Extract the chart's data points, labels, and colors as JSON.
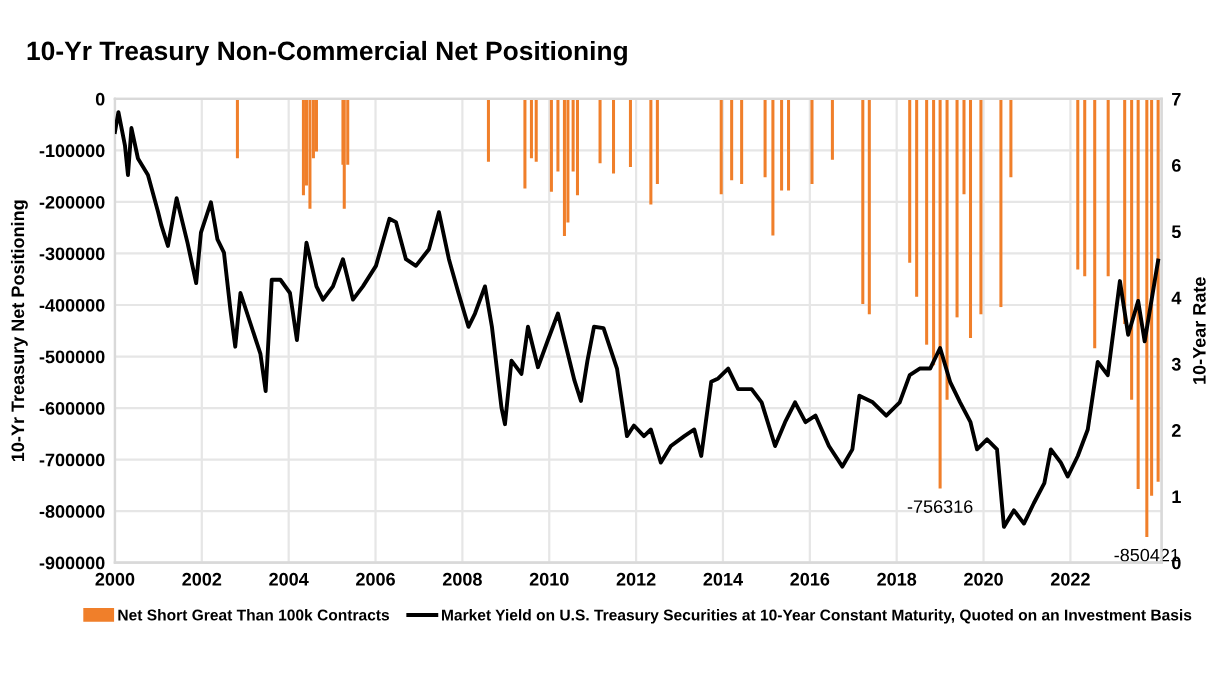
{
  "chart_data": {
    "type": "bar",
    "title": "10-Yr Treasury Non-Commercial Net Positioning",
    "ylabel": "10-Yr Treasury Net Positioning",
    "y2label": "10-Year Rate",
    "xlim": [
      2000,
      2024.1
    ],
    "xticks": [
      2000,
      2002,
      2004,
      2006,
      2008,
      2010,
      2012,
      2014,
      2016,
      2018,
      2020,
      2022
    ],
    "ylim": [
      -900000,
      0
    ],
    "yticks": [
      -900000,
      -800000,
      -700000,
      -600000,
      -500000,
      -400000,
      -300000,
      -200000,
      -100000,
      0
    ],
    "y2lim": [
      0,
      7
    ],
    "y2ticks": [
      0,
      1,
      2,
      3,
      4,
      5,
      6,
      7
    ],
    "grid": true,
    "legend": "bottom",
    "annotations": [
      {
        "text": "-756316",
        "x": 2019.0,
        "y": -756316
      },
      {
        "text": "-850421",
        "x": 2023.76,
        "y": -850421
      }
    ],
    "series": [
      {
        "name": "Net Short Great Than 100k Contracts",
        "color": "#f07f2a",
        "x": [
          2002.82,
          2004.34,
          2004.41,
          2004.49,
          2004.57,
          2004.64,
          2005.25,
          2005.28,
          2005.36,
          2008.6,
          2009.44,
          2009.59,
          2009.7,
          2010.05,
          2010.2,
          2010.35,
          2010.43,
          2010.55,
          2010.65,
          2011.17,
          2011.48,
          2011.87,
          2012.34,
          2012.49,
          2013.96,
          2014.2,
          2014.43,
          2014.97,
          2015.15,
          2015.35,
          2015.51,
          2016.05,
          2016.52,
          2017.22,
          2017.37,
          2018.3,
          2018.46,
          2018.69,
          2018.85,
          2019.0,
          2019.16,
          2019.39,
          2019.55,
          2019.7,
          2019.94,
          2020.4,
          2020.63,
          2022.17,
          2022.33,
          2022.56,
          2022.87,
          2023.25,
          2023.41,
          2023.56,
          2023.76,
          2023.87,
          2024.02
        ],
        "values": [
          -115000,
          -187000,
          -168000,
          -213000,
          -115000,
          -102000,
          -128000,
          -213000,
          -128000,
          -122000,
          -174000,
          -115000,
          -122000,
          -180000,
          -141000,
          -266000,
          -240000,
          -141000,
          -187000,
          -125000,
          -145000,
          -132000,
          -205000,
          -165000,
          -185000,
          -158000,
          -165000,
          -152000,
          -265000,
          -178000,
          -178000,
          -165000,
          -118000,
          -398000,
          -418000,
          -318000,
          -384000,
          -477000,
          -517000,
          -756316,
          -584000,
          -424000,
          -185000,
          -464000,
          -418000,
          -404000,
          -152000,
          -331000,
          -344000,
          -484000,
          -344000,
          -437000,
          -584000,
          -757000,
          -850421,
          -770000,
          -743000
        ]
      },
      {
        "name": "Market Yield on U.S. Treasury Securities at 10-Year Constant Maturity, Quoted on an Investment Basis",
        "type": "line",
        "axis": "y2",
        "color": "#000000",
        "x": [
          2000.0,
          2000.08,
          2000.23,
          2000.3,
          2000.38,
          2000.53,
          2000.76,
          2000.99,
          2001.07,
          2001.22,
          2001.42,
          2001.67,
          2001.87,
          2001.98,
          2002.21,
          2002.36,
          2002.51,
          2002.66,
          2002.77,
          2002.89,
          2003.12,
          2003.35,
          2003.47,
          2003.61,
          2003.81,
          2004.03,
          2004.19,
          2004.41,
          2004.64,
          2004.79,
          2005.02,
          2005.25,
          2005.48,
          2005.71,
          2006.01,
          2006.32,
          2006.47,
          2006.7,
          2006.93,
          2007.23,
          2007.46,
          2007.69,
          2007.91,
          2008.14,
          2008.29,
          2008.52,
          2008.68,
          2008.9,
          2008.98,
          2009.13,
          2009.36,
          2009.51,
          2009.74,
          2009.97,
          2010.2,
          2010.35,
          2010.58,
          2010.73,
          2010.88,
          2011.03,
          2011.25,
          2011.56,
          2011.79,
          2011.95,
          2012.18,
          2012.34,
          2012.57,
          2012.8,
          2013.11,
          2013.34,
          2013.5,
          2013.73,
          2013.89,
          2014.12,
          2014.35,
          2014.66,
          2014.89,
          2015.2,
          2015.43,
          2015.66,
          2015.9,
          2016.13,
          2016.44,
          2016.75,
          2016.98,
          2017.14,
          2017.45,
          2017.76,
          2018.07,
          2018.3,
          2018.53,
          2018.77,
          2019.0,
          2019.23,
          2019.46,
          2019.7,
          2019.85,
          2020.08,
          2020.31,
          2020.47,
          2020.7,
          2020.93,
          2021.16,
          2021.4,
          2021.55,
          2021.78,
          2021.94,
          2022.17,
          2022.4,
          2022.63,
          2022.86,
          2023.02,
          2023.14,
          2023.33,
          2023.56,
          2023.71,
          2024.02
        ],
        "values": [
          6.5,
          6.8,
          6.3,
          5.85,
          6.56,
          6.1,
          5.85,
          5.3,
          5.09,
          4.78,
          5.5,
          4.83,
          4.22,
          4.98,
          5.44,
          4.88,
          4.68,
          3.81,
          3.26,
          4.07,
          3.61,
          3.15,
          2.59,
          4.27,
          4.27,
          4.07,
          3.36,
          4.83,
          4.17,
          3.97,
          4.17,
          4.58,
          3.97,
          4.17,
          4.48,
          5.19,
          5.14,
          4.58,
          4.48,
          4.73,
          5.29,
          4.58,
          4.07,
          3.56,
          3.76,
          4.17,
          3.56,
          2.34,
          2.09,
          3.05,
          2.85,
          3.56,
          2.95,
          3.36,
          3.76,
          3.36,
          2.75,
          2.44,
          3.05,
          3.56,
          3.54,
          2.93,
          1.91,
          2.07,
          1.91,
          2.01,
          1.51,
          1.76,
          1.91,
          2.01,
          1.61,
          2.73,
          2.78,
          2.93,
          2.62,
          2.62,
          2.42,
          1.76,
          2.12,
          2.42,
          2.12,
          2.22,
          1.76,
          1.45,
          1.71,
          2.52,
          2.42,
          2.22,
          2.42,
          2.83,
          2.93,
          2.93,
          3.24,
          2.73,
          2.42,
          2.12,
          1.71,
          1.86,
          1.71,
          0.54,
          0.79,
          0.59,
          0.9,
          1.2,
          1.71,
          1.51,
          1.3,
          1.61,
          2.01,
          3.03,
          2.83,
          3.64,
          4.25,
          3.44,
          3.95,
          3.34,
          4.56
        ]
      }
    ]
  }
}
